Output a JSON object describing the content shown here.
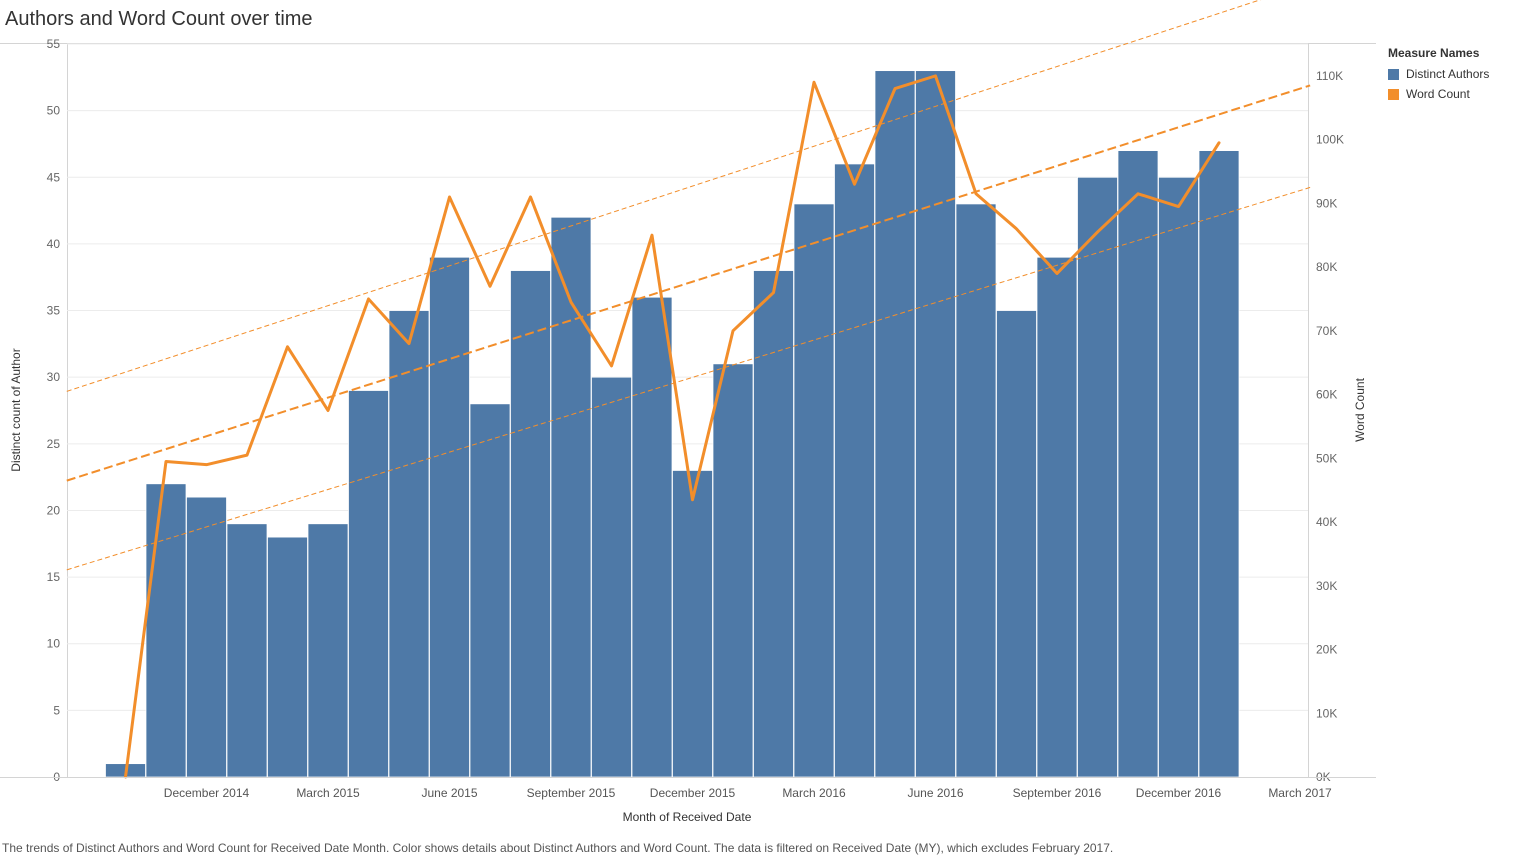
{
  "title": "Authors and Word Count over time",
  "caption": "The trends of Distinct Authors and Word Count for Received Date Month.  Color shows details about Distinct Authors and Word Count. The data is filtered on Received Date (MY), which excludes February 2017.",
  "legend": {
    "title": "Measure Names",
    "items": [
      {
        "label": "Distinct Authors",
        "color": "#4e79a7"
      },
      {
        "label": "Word Count",
        "color": "#f28e2b"
      }
    ]
  },
  "chart_data": {
    "type": "bar",
    "title": "Authors and Word Count over time",
    "xlabel": "Month of Received Date",
    "ylabel": "Distinct count of Author",
    "y2label": "Word Count",
    "ylim": [
      0,
      55
    ],
    "y2lim": [
      0,
      115000
    ],
    "yticks": [
      "0",
      "5",
      "10",
      "15",
      "20",
      "25",
      "30",
      "35",
      "40",
      "45",
      "50",
      "55"
    ],
    "y2ticks": [
      "0K",
      "10K",
      "20K",
      "30K",
      "40K",
      "50K",
      "60K",
      "70K",
      "80K",
      "90K",
      "100K",
      "110K"
    ],
    "categories": [
      "Oct 2014",
      "Nov 2014",
      "Dec 2014",
      "Jan 2015",
      "Feb 2015",
      "Mar 2015",
      "Apr 2015",
      "May 2015",
      "Jun 2015",
      "Jul 2015",
      "Aug 2015",
      "Sep 2015",
      "Oct 2015",
      "Nov 2015",
      "Dec 2015",
      "Jan 2016",
      "Feb 2016",
      "Mar 2016",
      "Apr 2016",
      "May 2016",
      "Jun 2016",
      "Jul 2016",
      "Aug 2016",
      "Sep 2016",
      "Oct 2016",
      "Nov 2016",
      "Dec 2016",
      "Jan 2017"
    ],
    "xtick_labels": [
      {
        "label": "December 2014",
        "index": 2
      },
      {
        "label": "March 2015",
        "index": 5
      },
      {
        "label": "June 2015",
        "index": 8
      },
      {
        "label": "September 2015",
        "index": 11
      },
      {
        "label": "December 2015",
        "index": 14
      },
      {
        "label": "March 2016",
        "index": 17
      },
      {
        "label": "June 2016",
        "index": 20
      },
      {
        "label": "September 2016",
        "index": 23
      },
      {
        "label": "December 2016",
        "index": 26
      },
      {
        "label": "March 2017",
        "index": 29
      }
    ],
    "series": [
      {
        "name": "Distinct Authors",
        "axis": "left",
        "type": "bar",
        "color": "#4e79a7",
        "values": [
          1,
          22,
          21,
          19,
          18,
          19,
          29,
          35,
          39,
          28,
          38,
          42,
          30,
          36,
          23,
          31,
          38,
          43,
          46,
          53,
          53,
          43,
          35,
          39,
          45,
          47,
          45,
          47
        ]
      },
      {
        "name": "Word Count",
        "axis": "right",
        "type": "line",
        "color": "#f28e2b",
        "values": [
          0,
          49500,
          49000,
          50500,
          67500,
          57500,
          75000,
          68000,
          91000,
          77000,
          91000,
          74500,
          64500,
          85000,
          43500,
          70000,
          76000,
          109000,
          93000,
          108000,
          110000,
          91500,
          86000,
          79000,
          85500,
          91500,
          89500,
          99500
        ]
      }
    ],
    "trend_lines": {
      "series": "Word Count",
      "x_range": [
        -1.45,
        29.25
      ],
      "center": [
        46500,
        108500
      ],
      "upper": [
        60500,
        124500
      ],
      "lower": [
        32500,
        92500
      ]
    }
  }
}
